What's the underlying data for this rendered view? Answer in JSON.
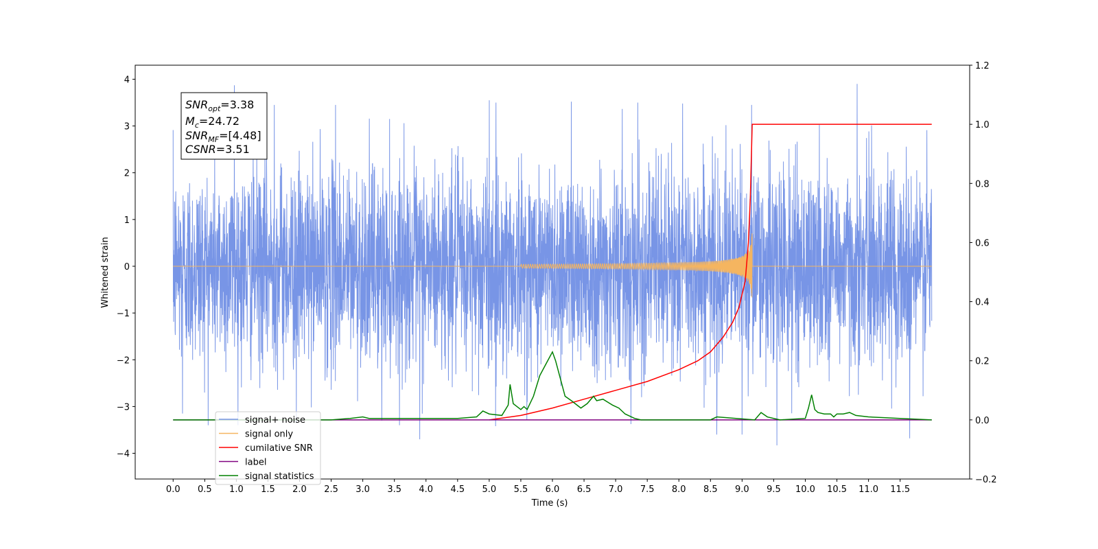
{
  "chart_data": {
    "type": "line",
    "xlabel": "Time (s)",
    "ylabel_left": "Whitened strain",
    "ylabel_right": "",
    "xlim": [
      -0.6,
      12.6
    ],
    "ylim_left": [
      -4.55,
      4.3
    ],
    "ylim_right": [
      -0.2,
      1.2
    ],
    "x_ticks": [
      "0.0",
      "0.5",
      "1.0",
      "1.5",
      "2.0",
      "2.5",
      "3.0",
      "3.5",
      "4.0",
      "4.5",
      "5.0",
      "5.5",
      "6.0",
      "6.5",
      "7.0",
      "7.5",
      "8.0",
      "8.5",
      "9.0",
      "9.5",
      "10.0",
      "10.5",
      "11.0",
      "11.5"
    ],
    "y_ticks_left": [
      "4",
      "3",
      "2",
      "1",
      "0",
      "−1",
      "−2",
      "−3",
      "−4"
    ],
    "y_ticks_right": [
      "1.2",
      "1.0",
      "0.8",
      "0.6",
      "0.4",
      "0.2",
      "0.0",
      "−0.2"
    ],
    "grid": false,
    "legend_position": "lower-left",
    "annotation": {
      "snr_opt": {
        "base": "SNR",
        "sub": "opt",
        "value": "=3.38"
      },
      "mc": {
        "base": "M",
        "sub": "c",
        "value": "=24.72"
      },
      "snr_mf": {
        "base": "SNR",
        "sub": "MF",
        "value": "=[4.48]"
      },
      "csnr": {
        "base": "CSNR",
        "sub": "",
        "value": "=3.51"
      }
    },
    "series": [
      {
        "name": "signal+ noise",
        "axis": "left",
        "color": "#7895e6",
        "description_range": [
          -3.7,
          3.9
        ],
        "x_range": [
          0.0,
          12.0
        ],
        "spikes": [
          {
            "x": 0.97,
            "y": 3.87
          },
          {
            "x": 10.82,
            "y": 3.9
          },
          {
            "x": 3.9,
            "y": -3.7
          },
          {
            "x": 9.55,
            "y": -3.83
          },
          {
            "x": 11.65,
            "y": -3.68
          },
          {
            "x": 5.0,
            "y": 3.55
          },
          {
            "x": 6.3,
            "y": 3.52
          },
          {
            "x": 7.35,
            "y": 3.5
          },
          {
            "x": 8.06,
            "y": 3.48
          },
          {
            "x": 9.15,
            "y": 3.45
          },
          {
            "x": 1.6,
            "y": 3.45
          },
          {
            "x": 2.57,
            "y": 3.45
          },
          {
            "x": 0.15,
            "y": -3.15
          },
          {
            "x": 1.95,
            "y": -3.35
          },
          {
            "x": 3.3,
            "y": -3.3
          },
          {
            "x": 5.1,
            "y": -3.42
          },
          {
            "x": 9.0,
            "y": -3.6
          },
          {
            "x": 8.6,
            "y": -3.6
          }
        ]
      },
      {
        "name": "signal only",
        "axis": "left",
        "color": "#f5b560",
        "chirp_end": 9.16,
        "peak_amplitude": 0.75
      },
      {
        "name": "cumilative SNR",
        "axis": "right",
        "color": "#ff0000",
        "x": [
          5.0,
          5.5,
          6.0,
          6.5,
          7.0,
          7.5,
          8.0,
          8.3,
          8.5,
          8.7,
          8.85,
          8.95,
          9.05,
          9.1,
          9.13,
          9.16,
          9.2,
          12.0
        ],
        "values": [
          0.0,
          0.015,
          0.04,
          0.07,
          0.1,
          0.13,
          0.17,
          0.2,
          0.23,
          0.28,
          0.33,
          0.38,
          0.47,
          0.6,
          0.75,
          1.0,
          1.0,
          1.0
        ]
      },
      {
        "name": "label",
        "axis": "right",
        "color": "#800080",
        "x": [
          0.0,
          12.0
        ],
        "values": [
          0.0,
          0.0
        ]
      },
      {
        "name": "signal statistics",
        "axis": "right",
        "color": "#008000",
        "x": [
          0.0,
          2.5,
          2.8,
          3.0,
          3.1,
          3.3,
          4.5,
          4.8,
          4.9,
          5.0,
          5.2,
          5.3,
          5.33,
          5.38,
          5.5,
          5.55,
          5.6,
          5.7,
          5.8,
          5.9,
          6.0,
          6.05,
          6.1,
          6.2,
          6.3,
          6.45,
          6.55,
          6.65,
          6.7,
          6.8,
          6.95,
          7.05,
          7.15,
          7.3,
          7.4,
          8.5,
          8.6,
          9.2,
          9.3,
          9.4,
          9.6,
          10.0,
          10.05,
          10.1,
          10.15,
          10.2,
          10.3,
          10.4,
          10.45,
          10.5,
          10.6,
          10.7,
          10.8,
          11.0,
          11.5,
          12.0
        ],
        "values": [
          0.0,
          0.0,
          0.005,
          0.01,
          0.005,
          0.005,
          0.005,
          0.01,
          0.03,
          0.02,
          0.015,
          0.05,
          0.12,
          0.055,
          0.035,
          0.045,
          0.035,
          0.08,
          0.15,
          0.19,
          0.23,
          0.2,
          0.16,
          0.08,
          0.065,
          0.04,
          0.055,
          0.08,
          0.065,
          0.07,
          0.05,
          0.04,
          0.02,
          0.005,
          0.0,
          0.0,
          0.01,
          0.0,
          0.025,
          0.01,
          0.0,
          0.005,
          0.04,
          0.085,
          0.035,
          0.025,
          0.02,
          0.02,
          0.01,
          0.02,
          0.02,
          0.025,
          0.015,
          0.01,
          0.005,
          0.0
        ]
      }
    ]
  }
}
